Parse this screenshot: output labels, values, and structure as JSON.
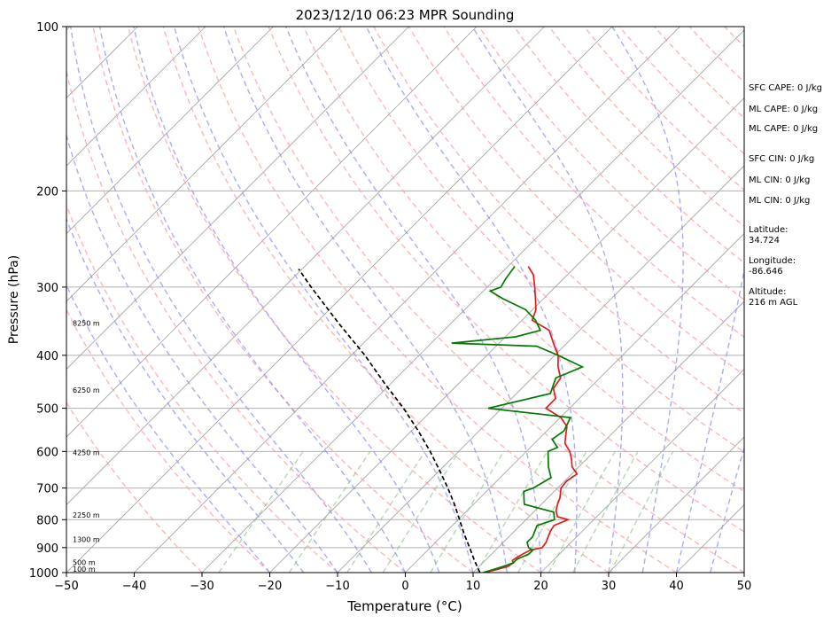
{
  "chart_data": {
    "type": "line",
    "title": "2023/12/10 06:23 MPR Sounding",
    "xlabel": "Temperature (°C)",
    "ylabel": "Pressure (hPa)",
    "xlim": [
      -50,
      50
    ],
    "ylim": [
      1000,
      100
    ],
    "y_scale": "log",
    "skew": true,
    "grid": true,
    "x_ticks": [
      "−50",
      "−40",
      "−30",
      "−20",
      "−10",
      "0",
      "10",
      "20",
      "30",
      "40",
      "50"
    ],
    "y_ticks": [
      "1000",
      "900",
      "800",
      "700",
      "600",
      "500",
      "400",
      "300",
      "200",
      "100"
    ],
    "series": [
      {
        "role": "temperature",
        "color": "#e41a1c",
        "points": [
          [
            1000,
            11.5
          ],
          [
            990,
            12.8
          ],
          [
            975,
            14.2
          ],
          [
            960,
            14.5
          ],
          [
            950,
            14.0
          ],
          [
            940,
            14.2
          ],
          [
            925,
            14.6
          ],
          [
            910,
            15.1
          ],
          [
            900,
            16.5
          ],
          [
            880,
            16.3
          ],
          [
            860,
            15.8
          ],
          [
            840,
            15.3
          ],
          [
            820,
            15.0
          ],
          [
            800,
            16.2
          ],
          [
            790,
            14.2
          ],
          [
            770,
            13.1
          ],
          [
            750,
            12.4
          ],
          [
            730,
            11.8
          ],
          [
            700,
            10.5
          ],
          [
            680,
            10.3
          ],
          [
            660,
            10.8
          ],
          [
            640,
            9.0
          ],
          [
            620,
            7.8
          ],
          [
            600,
            6.4
          ],
          [
            580,
            4.5
          ],
          [
            560,
            3.4
          ],
          [
            540,
            2.3
          ],
          [
            520,
            0.1
          ],
          [
            500,
            -3.5
          ],
          [
            480,
            -3.5
          ],
          [
            460,
            -5.3
          ],
          [
            440,
            -5.8
          ],
          [
            420,
            -7.8
          ],
          [
            400,
            -9.5
          ],
          [
            380,
            -12.0
          ],
          [
            360,
            -14.5
          ],
          [
            345,
            -18.5
          ],
          [
            330,
            -19.5
          ],
          [
            315,
            -21.2
          ],
          [
            300,
            -23.0
          ],
          [
            285,
            -25.0
          ],
          [
            275,
            -27.0
          ]
        ]
      },
      {
        "role": "dewpoint",
        "color": "#007a00",
        "points": [
          [
            1000,
            11.5
          ],
          [
            990,
            12.3
          ],
          [
            975,
            13.5
          ],
          [
            960,
            14.5
          ],
          [
            945,
            14.5
          ],
          [
            925,
            15.5
          ],
          [
            910,
            15.5
          ],
          [
            900,
            14.5
          ],
          [
            880,
            13.5
          ],
          [
            860,
            13.5
          ],
          [
            840,
            13.0
          ],
          [
            820,
            12.5
          ],
          [
            800,
            14.2
          ],
          [
            775,
            13.0
          ],
          [
            750,
            7.5
          ],
          [
            730,
            6.5
          ],
          [
            710,
            5.5
          ],
          [
            700,
            6.4
          ],
          [
            670,
            7.5
          ],
          [
            640,
            5.5
          ],
          [
            600,
            3.2
          ],
          [
            590,
            4.0
          ],
          [
            570,
            2.0
          ],
          [
            550,
            2.5
          ],
          [
            520,
            1.5
          ],
          [
            500,
            -12.0
          ],
          [
            470,
            -5.0
          ],
          [
            440,
            -6.5
          ],
          [
            420,
            -4.2
          ],
          [
            400,
            -9.5
          ],
          [
            385,
            -14.0
          ],
          [
            380,
            -27.0
          ],
          [
            370,
            -18.5
          ],
          [
            360,
            -15.8
          ],
          [
            345,
            -18.0
          ],
          [
            330,
            -21.0
          ],
          [
            315,
            -26.0
          ],
          [
            305,
            -29.0
          ],
          [
            300,
            -28.0
          ],
          [
            290,
            -28.5
          ],
          [
            275,
            -29.0
          ]
        ]
      },
      {
        "role": "parcel-profile",
        "color": "#000000",
        "style": "dashed",
        "points": [
          [
            1000,
            11.0
          ],
          [
            950,
            8.4
          ],
          [
            900,
            5.8
          ],
          [
            850,
            3.0
          ],
          [
            800,
            0.2
          ],
          [
            750,
            -2.8
          ],
          [
            700,
            -6.2
          ],
          [
            650,
            -10.0
          ],
          [
            600,
            -14.2
          ],
          [
            550,
            -19.0
          ],
          [
            500,
            -24.5
          ],
          [
            450,
            -31.0
          ],
          [
            400,
            -38.0
          ],
          [
            350,
            -46.5
          ],
          [
            300,
            -56.0
          ],
          [
            278,
            -60.5
          ]
        ]
      }
    ],
    "reference_lines": {
      "isotherms_color": "#a0a0a0",
      "dry_adiabats_color": "#f8a0a0",
      "moist_adiabats_color": "#9090f0",
      "mixing_ratio_color": "#80c080"
    },
    "height_labels": [
      "100 m",
      "500 m",
      "1300 m",
      "2250 m",
      "4250 m",
      "6250 m",
      "8250 m"
    ],
    "height_label_pressures": [
      1000,
      958,
      870,
      785,
      603,
      463,
      349
    ]
  },
  "indices": {
    "sfc_cape": "SFC CAPE: 0 J/kg",
    "ml_cape": "ML CAPE: 0 J/kg",
    "ml_cape_2": "ML CAPE: 0 J/kg",
    "sfc_cin": "SFC CIN: 0 J/kg",
    "ml_cin": "ML CIN: 0 J/kg",
    "ml_cin_2": "ML CIN: 0 J/kg"
  },
  "location": {
    "latitude_label": "Latitude:",
    "latitude_value": "34.724",
    "longitude_label": "Longitude:",
    "longitude_value": "-86.646",
    "altitude_label": "Altitude:",
    "altitude_value": "216 m AGL"
  }
}
